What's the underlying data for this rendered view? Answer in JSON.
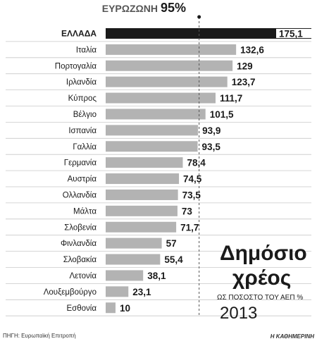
{
  "chart_data": {
    "type": "bar",
    "orientation": "horizontal",
    "title": "Δημόσιο χρέος",
    "subtitle": "ΩΣ ΠΟΣΟΣΤΟ ΤΟΥ ΑΕΠ %",
    "year": "2013",
    "reference_line": {
      "label": "ΕΥΡΩΖΩΝΗ",
      "value": 95,
      "value_label": "95%"
    },
    "categories": [
      "ΕΛΛΑΔΑ",
      "Ιταλία",
      "Πορτογαλία",
      "Ιρλανδία",
      "Κύπρος",
      "Βέλγιο",
      "Ισπανία",
      "Γαλλία",
      "Γερμανία",
      "Αυστρία",
      "Ολλανδία",
      "Μάλτα",
      "Σλοβενία",
      "Φινλανδία",
      "Σλοβακία",
      "Λετονία",
      "Λουξεμβούργο",
      "Εσθονία"
    ],
    "values": [
      175.1,
      132.6,
      129,
      123.7,
      111.7,
      101.5,
      93.9,
      93.5,
      78.4,
      74.5,
      73.5,
      73,
      71.7,
      57,
      55.4,
      38.1,
      23.1,
      10
    ],
    "value_labels": [
      "175,1",
      "132,6",
      "129",
      "123,7",
      "111,7",
      "101,5",
      "93,9",
      "93,5",
      "78,4",
      "74,5",
      "73,5",
      "73",
      "71,7",
      "57",
      "55,4",
      "38,1",
      "23,1",
      "10"
    ],
    "highlight_index": 0,
    "colors": {
      "highlight": "#1a1a1a",
      "bar": "#b3b3b3",
      "row_divider": "#c8c8c8",
      "text": "#1a1a1a",
      "reference": "#555555"
    },
    "source": "ΠΗΓΗ: Ευρωπαϊκή Επιτροπή",
    "publisher": "Η ΚΑΘΗΜΕΡΙΝΗ"
  }
}
